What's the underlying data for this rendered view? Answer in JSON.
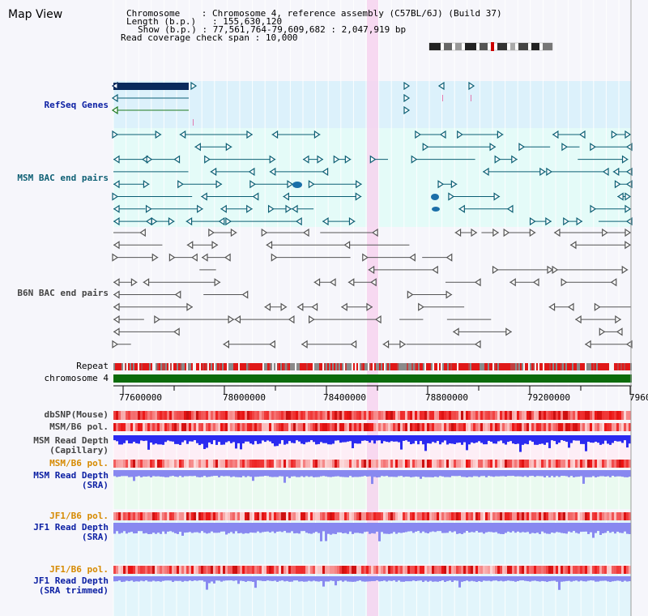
{
  "page_title": "Map View",
  "info": {
    "chromosome_label": "Chromosome    ",
    "chromosome_value": ": Chromosome 4, reference assembly (C57BL/6J) (Build 37)",
    "length_label": "Length (b.p.)",
    "length_value": ": 155,630,120",
    "show_label": "Show (b.p.)",
    "show_value": ": 77,561,764-79,609,682 : 2,047,919 bp",
    "coverage_label": "Read coverage check span",
    "coverage_value": ": 10,000"
  },
  "tracks": {
    "refseq_genes": "RefSeq Genes",
    "msm_bac": "MSM BAC end pairs",
    "b6n_bac": "B6N BAC end pairs",
    "repeat": "Repeat",
    "chromosome": "chromosome 4",
    "dbsnp": "dbSNP(Mouse)",
    "msm_b6_pol_1": "MSM/B6 pol.",
    "msm_depth_cap_1": "MSM Read Depth",
    "msm_depth_cap_2": "(Capillary)",
    "msm_b6_pol_2": "MSM/B6 pol.",
    "msm_depth_sra_1": "MSM Read Depth",
    "msm_depth_sra_2": "(SRA)",
    "jf1_b6_pol_1": "JF1/B6 pol.",
    "jf1_depth_sra_1": "JF1 Read Depth",
    "jf1_depth_sra_2": "(SRA)",
    "jf1_b6_pol_2": "JF1/B6 pol.",
    "jf1_depth_trim_1": "JF1 Read Depth",
    "jf1_depth_trim_2": "(SRA trimmed)"
  },
  "axis_ticks": [
    "77600000",
    "78000000",
    "78400000",
    "78800000",
    "79200000",
    "7960"
  ],
  "colors": {
    "refseq_bg": "#dcf1fb",
    "msm_bg": "#e4fbf8",
    "highlight": "#f7d4ef",
    "chromosome_bar": "#0b6b0b",
    "gene_navy": "#0a2a5c",
    "gene_teal": "#0d5f74",
    "bac_grey": "#555555",
    "depth_blue": "#2b2bf0",
    "depth_lavender": "#8888f0",
    "snp_red": "#ee3333"
  }
}
